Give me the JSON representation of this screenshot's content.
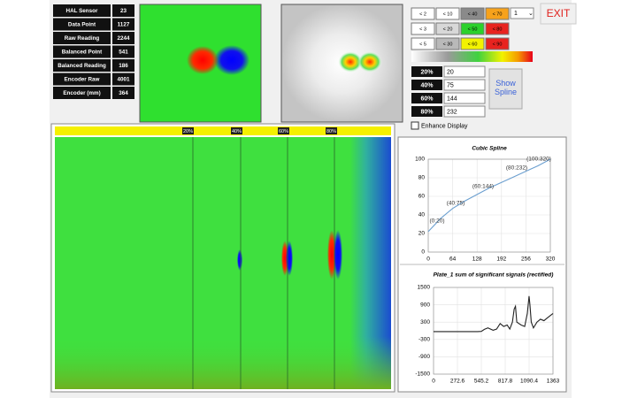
{
  "sensor_table": {
    "rows": [
      [
        "HAL Sensor",
        23
      ],
      [
        "Data Point",
        1127
      ],
      [
        "Raw Reading",
        2244
      ],
      [
        "Balanced Point",
        541
      ],
      [
        "Balanced Reading",
        186
      ],
      [
        "Encoder Raw",
        4001
      ],
      [
        "Encoder (mm)",
        364
      ]
    ]
  },
  "color_buttons": [
    [
      {
        "label": "< 2",
        "color": "#ffffff"
      },
      {
        "label": "< 10",
        "color": "#ffffff"
      },
      {
        "label": "< 40",
        "color": "#8a8a8a"
      },
      {
        "label": "< 70",
        "color": "#f7a21b"
      }
    ],
    [
      {
        "label": "< 3",
        "color": "#ffffff"
      },
      {
        "label": "< 20",
        "color": "#d8d8d8"
      },
      {
        "label": "< 50",
        "color": "#2bd12b"
      },
      {
        "label": "< 80",
        "color": "#e8231f"
      }
    ],
    [
      {
        "label": "< 5",
        "color": "#ffffff"
      },
      {
        "label": "< 30",
        "color": "#b9b9b9"
      },
      {
        "label": "< 60",
        "color": "#f2f200"
      },
      {
        "label": "< 90",
        "color": "#e8231f"
      }
    ]
  ],
  "dropdown": "1",
  "exit": "EXIT",
  "thresholds": [
    {
      "label": "20%",
      "value": 20
    },
    {
      "label": "40%",
      "value": 75
    },
    {
      "label": "60%",
      "value": 144
    },
    {
      "label": "80%",
      "value": 232
    }
  ],
  "show_spline": "Show Spline",
  "enhance_display": "Enhance Display",
  "heatmap_markers": [
    "20%",
    "40%",
    "60%",
    "80%"
  ],
  "spline_chart": {
    "type": "line",
    "title": "Cubic Spline",
    "color": "#6b9fd0",
    "x": [
      0,
      32,
      64,
      96,
      128,
      160,
      192,
      224,
      256,
      288,
      320
    ],
    "values": [
      22,
      36,
      47,
      55,
      62,
      69,
      75,
      81,
      87,
      93,
      100
    ],
    "xlim": [
      0,
      320
    ],
    "ylim": [
      0,
      100
    ],
    "xticks": [
      0,
      64,
      128,
      192,
      256,
      320
    ],
    "yticks": [
      0,
      20,
      40,
      60,
      80,
      100
    ],
    "grid": true,
    "annotations": [
      "(0:20)",
      "(40:75)",
      "(60:144)",
      "(80:232)",
      "(100:320)"
    ]
  },
  "signal_chart": {
    "type": "line",
    "title": "Plate_1 sum of significant signals (rectified)",
    "color": "#222222",
    "x": [
      0,
      100,
      200,
      300,
      400,
      500,
      545,
      580,
      620,
      680,
      720,
      760,
      800,
      840,
      870,
      900,
      920,
      935,
      950,
      1000,
      1040,
      1070,
      1090,
      1100,
      1115,
      1140,
      1180,
      1220,
      1260,
      1300,
      1363
    ],
    "values": [
      -30,
      -30,
      -30,
      -30,
      -30,
      -30,
      -20,
      50,
      100,
      20,
      60,
      250,
      150,
      200,
      60,
      300,
      750,
      850,
      300,
      200,
      150,
      600,
      1200,
      900,
      300,
      100,
      300,
      400,
      350,
      450,
      600
    ],
    "xlim": [
      0,
      1363
    ],
    "ylim": [
      -1500,
      1500
    ],
    "xticks": [
      0,
      272.6,
      545.2,
      817.8,
      1090.4,
      1363
    ],
    "yticks": [
      -1500,
      -900,
      -300,
      300,
      900,
      1500
    ],
    "grid": true
  }
}
